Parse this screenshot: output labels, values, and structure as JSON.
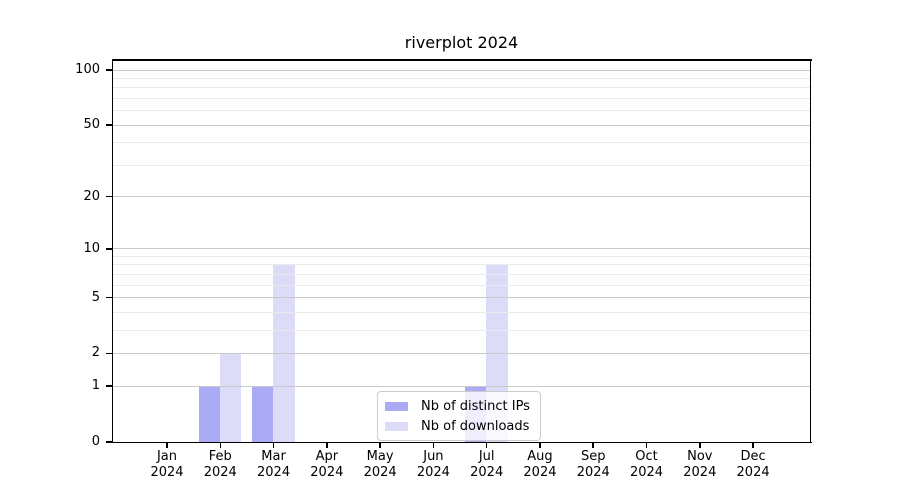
{
  "title": "riverplot 2024",
  "chart_data": {
    "type": "bar",
    "title": "riverplot 2024",
    "categories": [
      "Jan",
      "Feb",
      "Mar",
      "Apr",
      "May",
      "Jun",
      "Jul",
      "Aug",
      "Sep",
      "Oct",
      "Nov",
      "Dec"
    ],
    "category_year": "2024",
    "series": [
      {
        "name": "Nb of distinct IPs",
        "color": "#aaaaf5",
        "values": [
          0,
          1,
          1,
          0,
          0,
          0,
          1,
          0,
          0,
          0,
          0,
          0
        ]
      },
      {
        "name": "Nb of downloads",
        "color": "#dcdcf8",
        "values": [
          0,
          2,
          8,
          0,
          0,
          0,
          8,
          0,
          0,
          0,
          0,
          0
        ]
      }
    ],
    "y_scale": "log1p",
    "y_ticks": [
      0,
      1,
      2,
      5,
      10,
      20,
      50,
      100
    ],
    "y_minor_ticks": [
      3,
      4,
      6,
      7,
      8,
      9,
      30,
      40,
      60,
      70,
      80,
      90
    ],
    "ylim": [
      0,
      113.6
    ],
    "grid": "horizontal-only",
    "legend_position": "lower-center-inside",
    "colors": {
      "major_grid": "#c9c9c9",
      "minor_grid": "#ebebeb",
      "background": "#ffffff"
    }
  }
}
